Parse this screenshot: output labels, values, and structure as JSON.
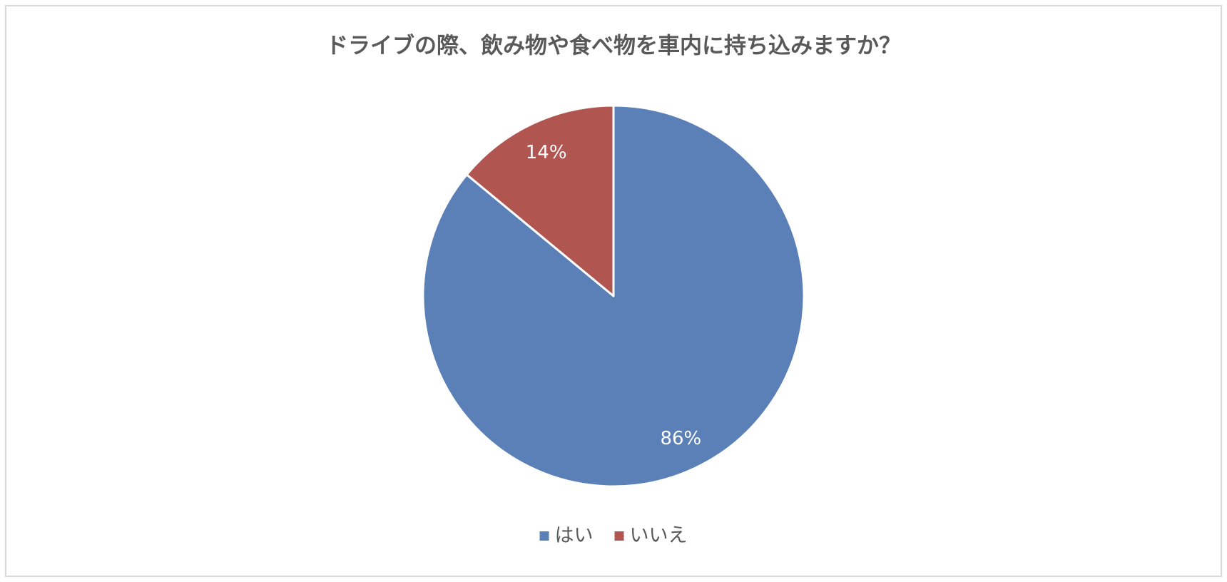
{
  "chart_data": {
    "type": "pie",
    "title": "ドライブの際、飲み物や食べ物を車内に持ち込みますか？",
    "categories": [
      "はい",
      "いいえ"
    ],
    "values": [
      86,
      14
    ],
    "value_labels": [
      "86%",
      "14%"
    ],
    "colors": [
      "#5b80b8",
      "#b05550"
    ],
    "legend": "bottom"
  }
}
